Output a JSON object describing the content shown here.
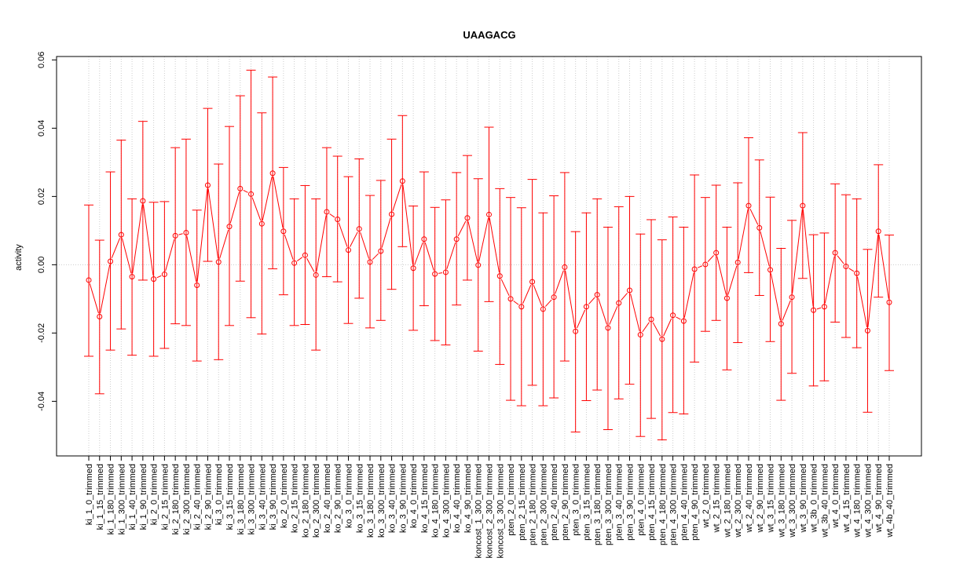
{
  "chart_data": {
    "type": "line",
    "title": "UAAGACG",
    "xlabel": "",
    "ylabel": "activity",
    "ylim": [
      -0.056,
      0.061
    ],
    "yticks": [
      "-0.04",
      "-0.02",
      "0.00",
      "0.02",
      "0.04",
      "0.06"
    ],
    "ytick_values": [
      -0.04,
      -0.02,
      0.0,
      0.02,
      0.04,
      0.06
    ],
    "grid": true,
    "series_color": "#ff0000",
    "grid_color": "#cccccc",
    "categories": [
      "ki_1_0_trimmed",
      "ki_1_15_trimmed",
      "ki_1_180_trimmed",
      "ki_1_300_trimmed",
      "ki_1_40_trimmed",
      "ki_1_90_trimmed",
      "ki_2_0_trimmed",
      "ki_2_15_trimmed",
      "ki_2_180_trimmed",
      "ki_2_300_trimmed",
      "ki_2_40_trimmed",
      "ki_2_90_trimmed",
      "ki_3_0_trimmed",
      "ki_3_15_trimmed",
      "ki_3_180_trimmed",
      "ki_3_300_trimmed",
      "ki_3_40_trimmed",
      "ki_3_90_trimmed",
      "ko_2_0_trimmed",
      "ko_2_15_trimmed",
      "ko_2_180_trimmed",
      "ko_2_300_trimmed",
      "ko_2_40_trimmed",
      "ko_2_90_trimmed",
      "ko_3_0_trimmed",
      "ko_3_15_trimmed",
      "ko_3_180_trimmed",
      "ko_3_300_trimmed",
      "ko_3_40_trimmed",
      "ko_3_90_trimmed",
      "ko_4_0_trimmed",
      "ko_4_15_trimmed",
      "ko_4_180_trimmed",
      "ko_4_300_trimmed",
      "ko_4_40_trimmed",
      "ko_4_90_trimmed",
      "koncost_1_300_trimmed",
      "koncost_2_300_trimmed",
      "koncost_3_300_trimmed",
      "pten_2_0_trimmed",
      "pten_2_15_trimmed",
      "pten_2_180_trimmed",
      "pten_2_300_trimmed",
      "pten_2_40_trimmed",
      "pten_2_90_trimmed",
      "pten_3_0_trimmed",
      "pten_3_15_trimmed",
      "pten_3_180_trimmed",
      "pten_3_300_trimmed",
      "pten_3_40_trimmed",
      "pten_3_90_trimmed",
      "pten_4_0_trimmed",
      "pten_4_15_trimmed",
      "pten_4_180_trimmed",
      "pten_4_300_trimmed",
      "pten_4_40_trimmed",
      "pten_4_90_trimmed",
      "wt_2_0_trimmed",
      "wt_2_15_trimmed",
      "wt_2_180_trimmed",
      "wt_2_300_trimmed",
      "wt_2_40_trimmed",
      "wt_2_90_trimmed",
      "wt_3_15_trimmed",
      "wt_3_180_trimmed",
      "wt_3_300_trimmed",
      "wt_3_90_trimmed",
      "wt_3b_0_trimmed",
      "wt_3b_40_trimmed",
      "wt_4_0_trimmed",
      "wt_4_15_trimmed",
      "wt_4_180_trimmed",
      "wt_4_300_trimmed",
      "wt_4_90_trimmed",
      "wt_4b_40_trimmed"
    ],
    "values": [
      -0.0045,
      -0.0152,
      0.001,
      0.0088,
      -0.0035,
      0.0187,
      -0.0042,
      -0.0028,
      0.0085,
      0.0094,
      -0.006,
      0.0233,
      0.0008,
      0.0112,
      0.0223,
      0.0207,
      0.012,
      0.0268,
      0.0098,
      0.0005,
      0.0028,
      -0.003,
      0.0155,
      0.0133,
      0.0043,
      0.0105,
      0.0008,
      0.004,
      0.0148,
      0.0245,
      -0.001,
      0.0075,
      -0.0027,
      -0.0022,
      0.0075,
      0.0137,
      -0.0001,
      0.0147,
      -0.0033,
      -0.01,
      -0.0123,
      -0.005,
      -0.013,
      -0.0095,
      -0.0007,
      -0.0195,
      -0.0123,
      -0.0088,
      -0.0185,
      -0.0112,
      -0.0075,
      -0.0205,
      -0.016,
      -0.0218,
      -0.0148,
      -0.0165,
      -0.0013,
      0.0001,
      0.0035,
      -0.0098,
      0.0007,
      0.0173,
      0.0108,
      -0.0015,
      -0.0173,
      -0.0095,
      0.0173,
      -0.0133,
      -0.0123,
      0.0035,
      -0.0005,
      -0.0025,
      -0.0193,
      0.0098,
      -0.011
    ],
    "upper": [
      0.0175,
      0.0072,
      0.0272,
      0.0365,
      0.0193,
      0.042,
      0.0183,
      0.0185,
      0.0343,
      0.0368,
      0.016,
      0.0458,
      0.0295,
      0.0405,
      0.0495,
      0.057,
      0.0445,
      0.055,
      0.0285,
      0.0193,
      0.0232,
      0.0193,
      0.0343,
      0.0318,
      0.0258,
      0.031,
      0.0203,
      0.0247,
      0.0368,
      0.0437,
      0.0172,
      0.0272,
      0.0168,
      0.019,
      0.027,
      0.032,
      0.0252,
      0.0403,
      0.0223,
      0.0197,
      0.0167,
      0.025,
      0.0152,
      0.0202,
      0.027,
      0.0097,
      0.0152,
      0.0193,
      0.011,
      0.017,
      0.02,
      0.009,
      0.0132,
      0.0073,
      0.014,
      0.011,
      0.0263,
      0.0197,
      0.0233,
      0.011,
      0.024,
      0.0372,
      0.0307,
      0.0198,
      0.0048,
      0.013,
      0.0387,
      0.0088,
      0.0093,
      0.0237,
      0.0205,
      0.0193,
      0.0045,
      0.0293,
      0.0087
    ],
    "lower": [
      -0.0268,
      -0.0378,
      -0.025,
      -0.0188,
      -0.0265,
      -0.0045,
      -0.0268,
      -0.0245,
      -0.0173,
      -0.0178,
      -0.0282,
      0.001,
      -0.0278,
      -0.0178,
      -0.0048,
      -0.0155,
      -0.0203,
      -0.0012,
      -0.0088,
      -0.0178,
      -0.0175,
      -0.025,
      -0.0035,
      -0.005,
      -0.0172,
      -0.0098,
      -0.0185,
      -0.0163,
      -0.0072,
      0.0053,
      -0.0192,
      -0.012,
      -0.0222,
      -0.0235,
      -0.0118,
      -0.0045,
      -0.0253,
      -0.0108,
      -0.0292,
      -0.0397,
      -0.0413,
      -0.0353,
      -0.0413,
      -0.039,
      -0.0282,
      -0.049,
      -0.0398,
      -0.0367,
      -0.0483,
      -0.0393,
      -0.035,
      -0.0503,
      -0.045,
      -0.0513,
      -0.0433,
      -0.0437,
      -0.0285,
      -0.0195,
      -0.0163,
      -0.0308,
      -0.0228,
      -0.0023,
      -0.009,
      -0.0225,
      -0.0397,
      -0.0318,
      -0.004,
      -0.0355,
      -0.034,
      -0.0168,
      -0.0213,
      -0.0243,
      -0.0432,
      -0.0095,
      -0.031
    ]
  }
}
